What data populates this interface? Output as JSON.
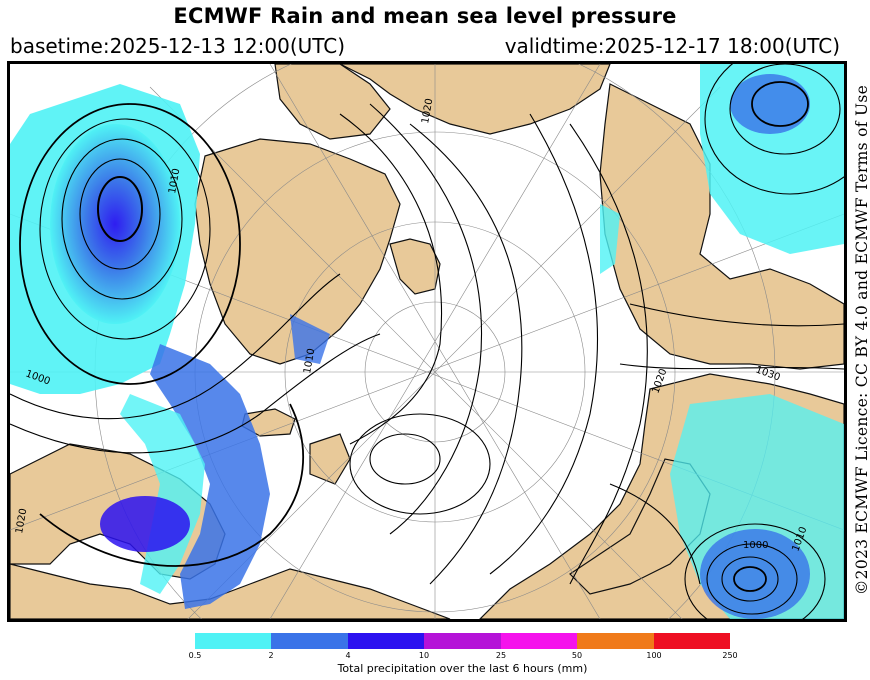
{
  "header": {
    "title": "ECMWF Rain and mean sea level pressure",
    "basetime": "basetime:2025-12-13 12:00(UTC)",
    "validtime": "validtime:2025-12-17 18:00(UTC)"
  },
  "licence": "©2023 ECMWF  Licence: CC BY 4.0 and ECMWF  Terms of Use",
  "map": {
    "projection": "north-polar-stereographic",
    "isobar_labels": [
      "1010",
      "1000",
      "1020",
      "1030",
      "1020",
      "1000",
      "1010",
      "1020",
      "1010"
    ]
  },
  "legend": {
    "caption": "Total precipitation over the last 6 hours (mm)",
    "ticks": [
      "0.5",
      "2",
      "4",
      "10",
      "25",
      "50",
      "100",
      "250"
    ],
    "colors": [
      "#4ff2f5",
      "#3a73e8",
      "#2c12f0",
      "#b513d8",
      "#f512ec",
      "#f07a1a",
      "#ee0f22"
    ]
  },
  "colors": {
    "land": "#e8c999",
    "sea": "#ffffff",
    "coast": "#111111",
    "graticule": "#8a8a8a"
  }
}
